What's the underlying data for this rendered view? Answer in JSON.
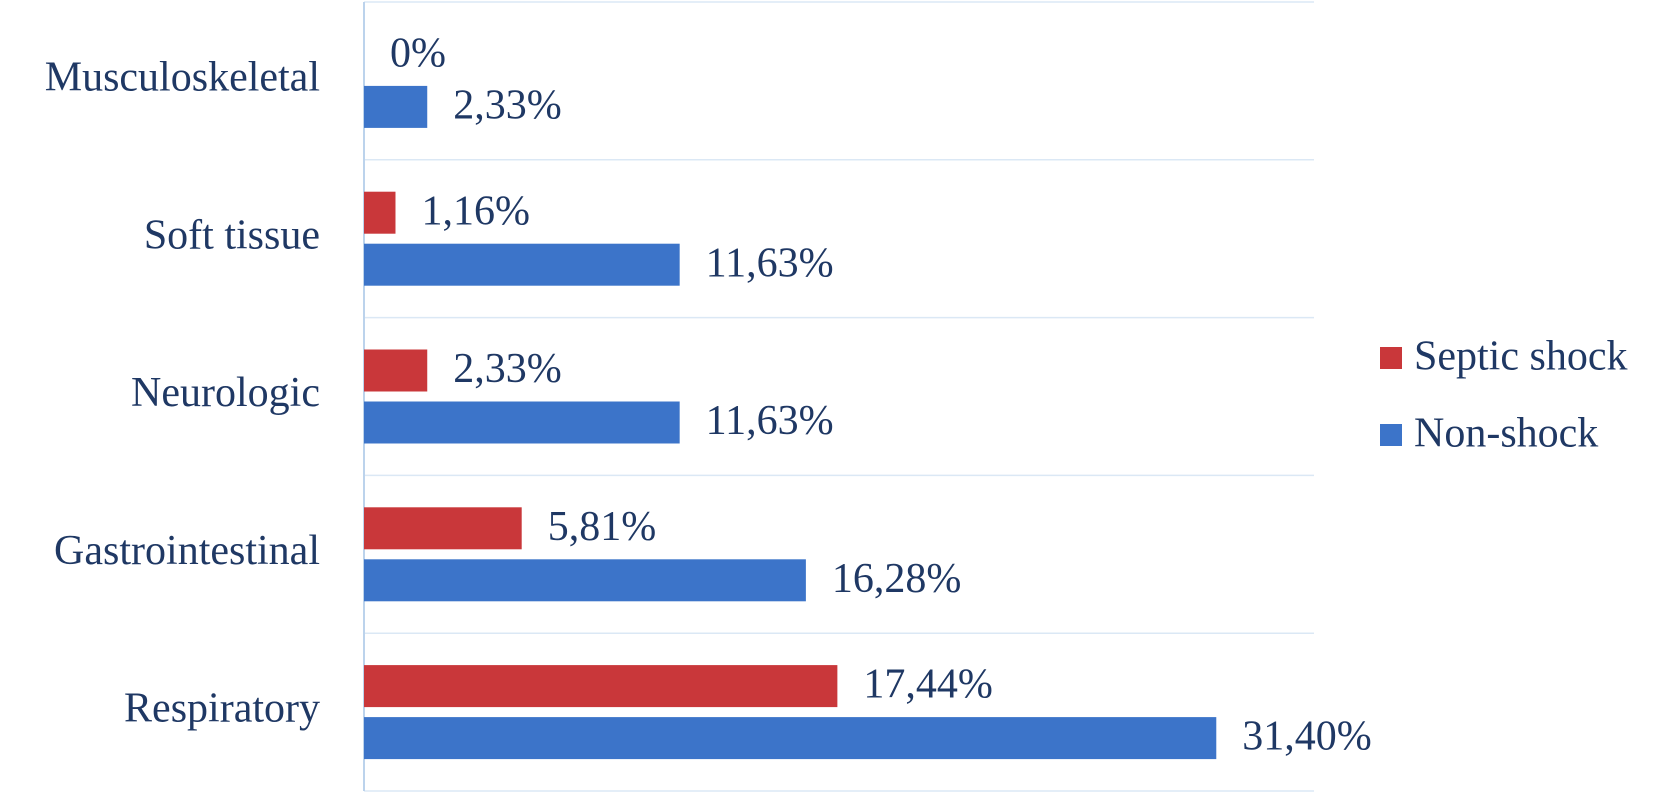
{
  "chart_data": {
    "type": "hbar",
    "categories": [
      "Musculoskeletal",
      "Soft tissue",
      "Neurologic",
      "Gastrointestinal",
      "Respiratory"
    ],
    "series": [
      {
        "name": "Septic shock",
        "color": "#c9373a",
        "values": [
          0,
          1.16,
          2.33,
          5.81,
          17.44
        ],
        "value_labels": [
          "0%",
          "1,16%",
          "2,33%",
          "5,81%",
          "17,44%"
        ]
      },
      {
        "name": "Non-shock",
        "color": "#3c74c9",
        "values": [
          2.33,
          11.63,
          11.63,
          16.28,
          31.4
        ],
        "value_labels": [
          "2,33%",
          "11,63%",
          "11,63%",
          "16,28%",
          "31,40%"
        ]
      }
    ],
    "xlim": [
      0,
      35
    ],
    "legend": "right"
  }
}
